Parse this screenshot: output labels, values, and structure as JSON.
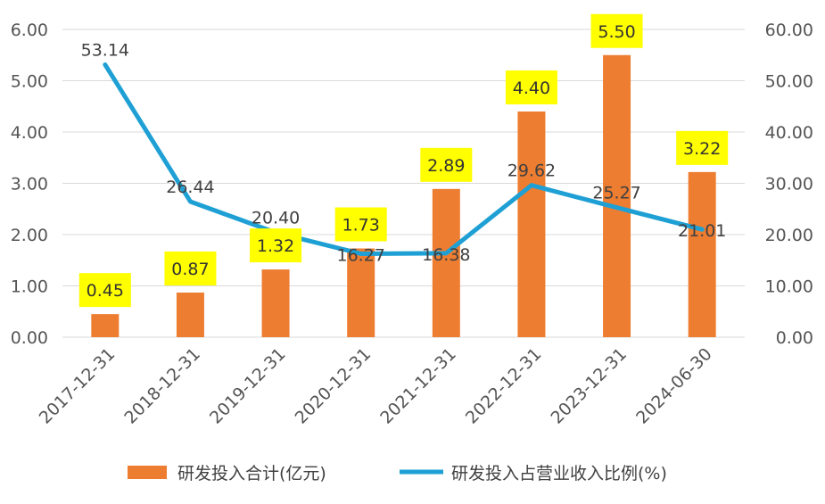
{
  "colors": {
    "bar": "#ED7D31",
    "line": "#1FA0D5",
    "label_highlight": "#FFFF00",
    "grid": "#D9D9D9"
  },
  "chart_data": {
    "type": "bar",
    "categories": [
      "2017-12-31",
      "2018-12-31",
      "2019-12-31",
      "2020-12-31",
      "2021-12-31",
      "2022-12-31",
      "2023-12-31",
      "2024-06-30"
    ],
    "series": [
      {
        "name": "研发投入合计(亿元)",
        "type": "bar",
        "axis": "left",
        "values": [
          0.45,
          0.87,
          1.32,
          1.73,
          2.89,
          4.4,
          5.5,
          3.22
        ],
        "labels": [
          "0.45",
          "0.87",
          "1.32",
          "1.73",
          "2.89",
          "4.40",
          "5.50",
          "3.22"
        ]
      },
      {
        "name": "研发投入占营业收入比例(%)",
        "type": "line",
        "axis": "right",
        "values": [
          53.14,
          26.44,
          20.4,
          16.27,
          16.38,
          29.62,
          25.27,
          21.01
        ],
        "labels": [
          "53.14",
          "26.44",
          "20.40",
          "16.27",
          "16.38",
          "29.62",
          "25.27",
          "21.01"
        ]
      }
    ],
    "ylim_left": [
      0,
      6
    ],
    "ylim_right": [
      0,
      60
    ],
    "yticks_left": [
      "0.00",
      "1.00",
      "2.00",
      "3.00",
      "4.00",
      "5.00",
      "6.00"
    ],
    "yticks_right": [
      "0.00",
      "10.00",
      "20.00",
      "30.00",
      "40.00",
      "50.00",
      "60.00"
    ],
    "grid": true,
    "legend_position": "bottom"
  }
}
